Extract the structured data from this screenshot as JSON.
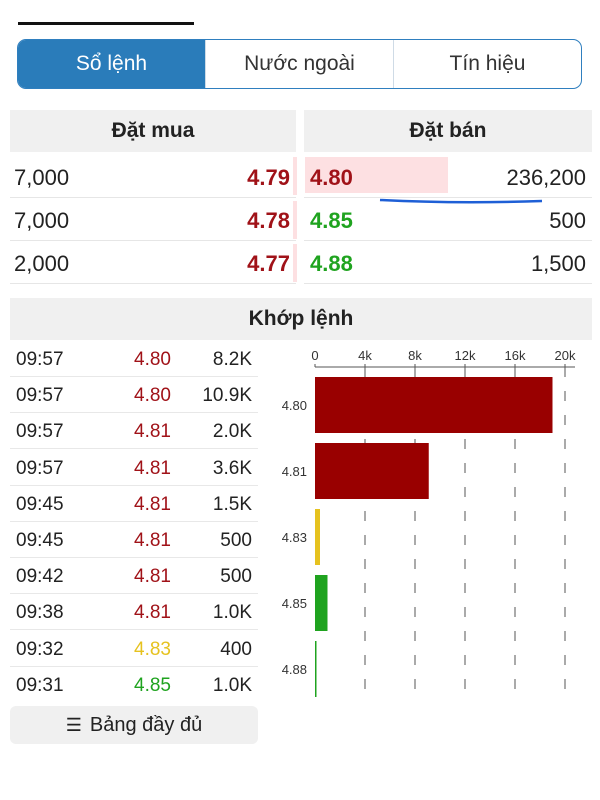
{
  "tabs": [
    {
      "label": "Sổ lệnh",
      "active": true
    },
    {
      "label": "Nước ngoài",
      "active": false
    },
    {
      "label": "Tín hiệu",
      "active": false
    }
  ],
  "orderbook": {
    "buy_header": "Đặt mua",
    "sell_header": "Đặt bán",
    "buy": [
      {
        "volume": "7,000",
        "price": "4.79"
      },
      {
        "volume": "7,000",
        "price": "4.78"
      },
      {
        "volume": "2,000",
        "price": "4.77"
      }
    ],
    "sell": [
      {
        "price": "4.80",
        "volume": "236,200",
        "color": "#a01218"
      },
      {
        "price": "4.85",
        "volume": "500",
        "color": "#1fa31f"
      },
      {
        "price": "4.88",
        "volume": "1,500",
        "color": "#1fa31f"
      }
    ]
  },
  "matched": {
    "title": "Khớp lệnh",
    "trades": [
      {
        "time": "09:57",
        "price": "4.80",
        "volume": "8.2K",
        "color": "#a01218"
      },
      {
        "time": "09:57",
        "price": "4.80",
        "volume": "10.9K",
        "color": "#a01218"
      },
      {
        "time": "09:57",
        "price": "4.81",
        "volume": "2.0K",
        "color": "#a01218"
      },
      {
        "time": "09:57",
        "price": "4.81",
        "volume": "3.6K",
        "color": "#a01218"
      },
      {
        "time": "09:45",
        "price": "4.81",
        "volume": "1.5K",
        "color": "#a01218"
      },
      {
        "time": "09:45",
        "price": "4.81",
        "volume": "500",
        "color": "#a01218"
      },
      {
        "time": "09:42",
        "price": "4.81",
        "volume": "500",
        "color": "#a01218"
      },
      {
        "time": "09:38",
        "price": "4.81",
        "volume": "1.0K",
        "color": "#a01218"
      },
      {
        "time": "09:32",
        "price": "4.83",
        "volume": "400",
        "color": "#e6c21f"
      },
      {
        "time": "09:31",
        "price": "4.85",
        "volume": "1.0K",
        "color": "#1fa31f"
      }
    ],
    "full_table_button": "Bảng đầy đủ"
  },
  "chart_data": {
    "type": "bar",
    "orientation": "horizontal",
    "categories": [
      "4.80",
      "4.81",
      "4.83",
      "4.85",
      "4.88"
    ],
    "values": [
      19000,
      9100,
      400,
      1000,
      100
    ],
    "colors": [
      "#990000",
      "#990000",
      "#e6c21f",
      "#1fa31f",
      "#1fa31f"
    ],
    "xticks": [
      "0",
      "4k",
      "8k",
      "12k",
      "16k",
      "20k"
    ],
    "xlim": [
      0,
      20000
    ],
    "grid": true
  }
}
